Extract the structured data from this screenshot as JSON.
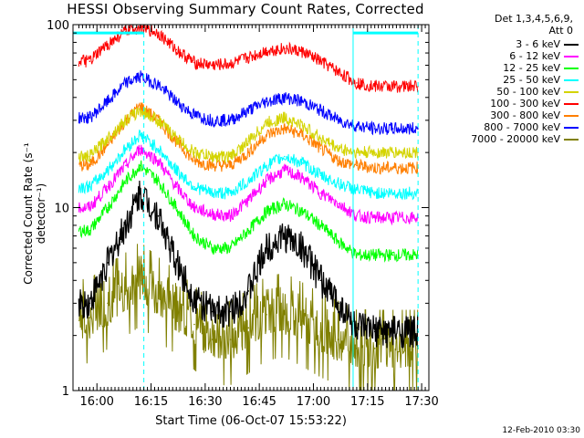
{
  "chart_data": {
    "type": "line",
    "title": "HESSI Observing Summary Count Rates, Corrected",
    "xlabel": "Start Time (06-Oct-07 15:53:22)",
    "ylabel": "Corrected Count Rate (s⁻¹ detector⁻¹)",
    "y_scale": "log",
    "ylim": [
      1,
      100
    ],
    "y_ticks": [
      "1",
      "10",
      "100"
    ],
    "xlim": [
      "15:53:22",
      "17:32"
    ],
    "x_ticks": [
      "16:00",
      "16:15",
      "16:30",
      "16:45",
      "17:00",
      "17:15",
      "17:30"
    ],
    "detector_info": [
      "Det 1,3,4,5,6,9,",
      "Att 0"
    ],
    "footer_date": "12-Feb-2010 03:30",
    "vertical_lines": [
      {
        "time": "15:53:22",
        "style": "solid",
        "color": "#00ffff"
      },
      {
        "time": "16:13",
        "style": "dashed",
        "color": "#00ffff"
      },
      {
        "time": "17:11",
        "style": "solid",
        "color": "#00ffff"
      },
      {
        "time": "17:29",
        "style": "dashed",
        "color": "#00ffff"
      }
    ],
    "bars": [
      {
        "start": "15:53:22",
        "end": "16:13",
        "value": 90,
        "color": "#00ffff"
      },
      {
        "start": "17:11",
        "end": "17:29",
        "value": 90,
        "color": "#00ffff"
      }
    ],
    "x": [
      "15:58",
      "16:03",
      "16:08",
      "16:12",
      "16:17",
      "16:22",
      "16:27",
      "16:32",
      "16:37",
      "16:42",
      "16:47",
      "16:52",
      "16:57",
      "17:02",
      "17:07",
      "17:12",
      "17:17",
      "17:22",
      "17:29"
    ],
    "series": [
      {
        "name": "3 - 6 keV",
        "color": "#000000",
        "values": [
          3,
          5,
          8,
          12,
          9,
          5,
          3.2,
          2.7,
          2.7,
          3.5,
          6,
          7,
          6,
          4,
          3,
          2.2,
          2.1,
          2.1,
          2.1
        ]
      },
      {
        "name": "6 - 12 keV",
        "color": "#ff00ff",
        "values": [
          10,
          13,
          17,
          21,
          18,
          13,
          10,
          9.2,
          9,
          11,
          14,
          16,
          14.5,
          12,
          10.5,
          9,
          8.8,
          8.8,
          8.8
        ]
      },
      {
        "name": "12 - 25 keV",
        "color": "#00ff00",
        "values": [
          7.5,
          10,
          14,
          17,
          14,
          10,
          7,
          6,
          6,
          7.5,
          9.5,
          10.5,
          9.5,
          8,
          6.5,
          5.5,
          5.5,
          5.5,
          5.5
        ]
      },
      {
        "name": "25 - 50 keV",
        "color": "#00ffff",
        "values": [
          13,
          16,
          21,
          25,
          21,
          16,
          13,
          12,
          12,
          14,
          17,
          19,
          17.5,
          15,
          13.5,
          12.5,
          12,
          12,
          12
        ]
      },
      {
        "name": "50 - 100 keV",
        "color": "#d4d400",
        "values": [
          19,
          24,
          30,
          34,
          30,
          24,
          20,
          19,
          19,
          23,
          29,
          31,
          28,
          24,
          21,
          20,
          20,
          20,
          20
        ]
      },
      {
        "name": "100 - 300 keV",
        "color": "#ff0000",
        "values": [
          63,
          78,
          92,
          97,
          90,
          73,
          62,
          60,
          61,
          66,
          72,
          74,
          71,
          63,
          55,
          48,
          46,
          46,
          46
        ]
      },
      {
        "name": "300 - 800 keV",
        "color": "#ff7f00",
        "values": [
          17,
          22,
          30,
          36,
          30,
          23,
          18,
          17,
          17,
          20,
          25,
          27,
          25,
          21,
          18,
          17,
          16.5,
          16.5,
          16.5
        ]
      },
      {
        "name": "800 - 7000 keV",
        "color": "#0000ff",
        "values": [
          31,
          38,
          48,
          52,
          47,
          38,
          32,
          30,
          30,
          34,
          38,
          40,
          38,
          34,
          30,
          28,
          27,
          27,
          27
        ]
      },
      {
        "name": "7000 - 20000 keV",
        "color": "#808000",
        "values": [
          2.5,
          3,
          3.5,
          4,
          3.3,
          2.8,
          2.3,
          1.9,
          1.9,
          2.2,
          2.6,
          2.7,
          2.4,
          2.1,
          1.9,
          1.7,
          1.7,
          1.7,
          1.7
        ]
      }
    ]
  }
}
